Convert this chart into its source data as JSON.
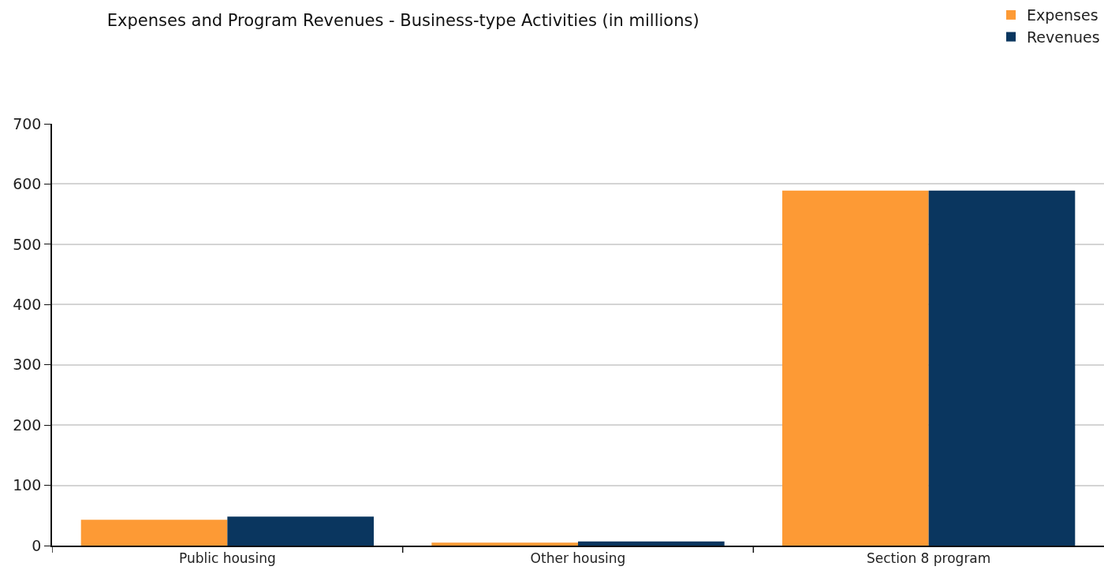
{
  "chart_data": {
    "type": "bar",
    "title": "Expenses and Program Revenues - Business-type Activities (in millions)",
    "categories": [
      "Public housing",
      "Other housing",
      "Section 8 program"
    ],
    "series": [
      {
        "name": "Expenses",
        "color": "#fd9a35",
        "values": [
          43,
          5,
          589
        ]
      },
      {
        "name": "Revenues",
        "color": "#0a365f",
        "values": [
          48,
          7,
          589
        ]
      }
    ],
    "ylim": [
      0,
      700
    ],
    "yticks": [
      0,
      100,
      200,
      300,
      400,
      500,
      600,
      700
    ],
    "grid": "y",
    "legend": "top right"
  }
}
